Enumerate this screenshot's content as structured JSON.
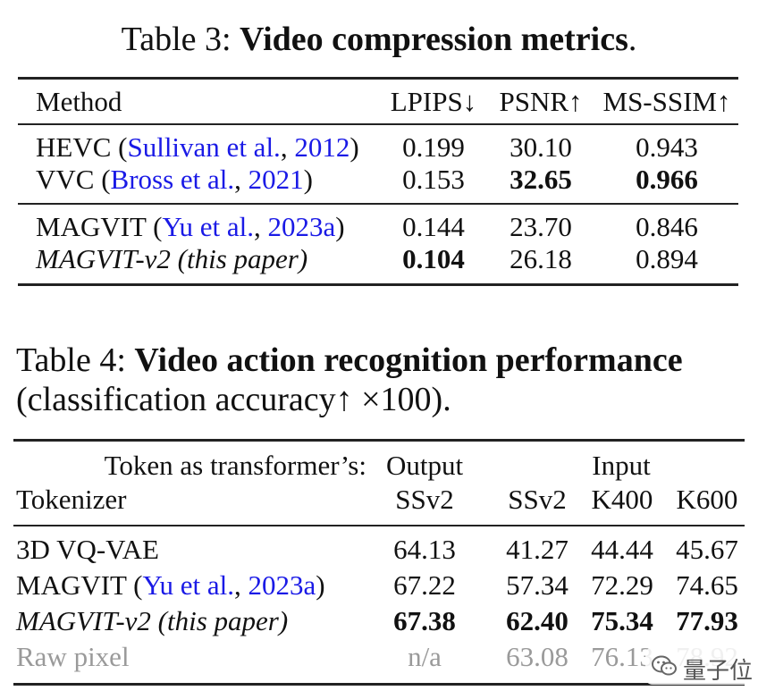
{
  "table3": {
    "caption_prefix": "Table 3: ",
    "caption_bold": "Video compression metrics",
    "caption_end": ".",
    "headers": [
      "Method",
      "LPIPS↓",
      "PSNR↑",
      "MS-SSIM↑"
    ],
    "rows": [
      {
        "name": "HEVC (",
        "cite_a": "Sullivan et al.",
        "sep": ", ",
        "cite_b": "2012",
        "close": ")",
        "lpips": "0.199",
        "psnr": "30.10",
        "msssim": "0.943"
      },
      {
        "name": "VVC (",
        "cite_a": "Bross et al.",
        "sep": ", ",
        "cite_b": "2021",
        "close": ")",
        "lpips": "0.153",
        "psnr": "32.65",
        "msssim": "0.966"
      },
      {
        "name": "MAGVIT (",
        "cite_a": "Yu et al.",
        "sep": ", ",
        "cite_b": "2023a",
        "close": ")",
        "lpips": "0.144",
        "psnr": "23.70",
        "msssim": "0.846"
      },
      {
        "name": "MAGVIT-v2 (this paper)",
        "lpips": "0.104",
        "psnr": "26.18",
        "msssim": "0.894"
      }
    ]
  },
  "table4": {
    "caption_prefix": "Table 4: ",
    "caption_bold": "Video action recognition performance",
    "caption_line2": "(classification accuracy↑ ×100).",
    "header_row1": {
      "label": "Token as transformer’s:",
      "output": "Output",
      "input": "Input"
    },
    "header_row2": [
      "Tokenizer",
      "SSv2",
      "SSv2",
      "K400",
      "K600"
    ],
    "rows": [
      {
        "name": "3D VQ-VAE",
        "out_ssv2": "64.13",
        "in_ssv2": "41.27",
        "k400": "44.44",
        "k600": "45.67"
      },
      {
        "name": "MAGVIT (",
        "cite_a": "Yu et al.",
        "sep": ", ",
        "cite_b": "2023a",
        "close": ")",
        "out_ssv2": "67.22",
        "in_ssv2": "57.34",
        "k400": "72.29",
        "k600": "74.65"
      },
      {
        "name": "MAGVIT-v2 (this paper)",
        "out_ssv2": "67.38",
        "in_ssv2": "62.40",
        "k400": "75.34",
        "k600": "77.93"
      },
      {
        "name": "Raw pixel",
        "out_ssv2": "n/a",
        "in_ssv2": "63.08",
        "k400": "76.13",
        "k600": "78.92"
      }
    ]
  },
  "watermark": {
    "text": "量子位",
    "icon": "wechat-icon"
  }
}
